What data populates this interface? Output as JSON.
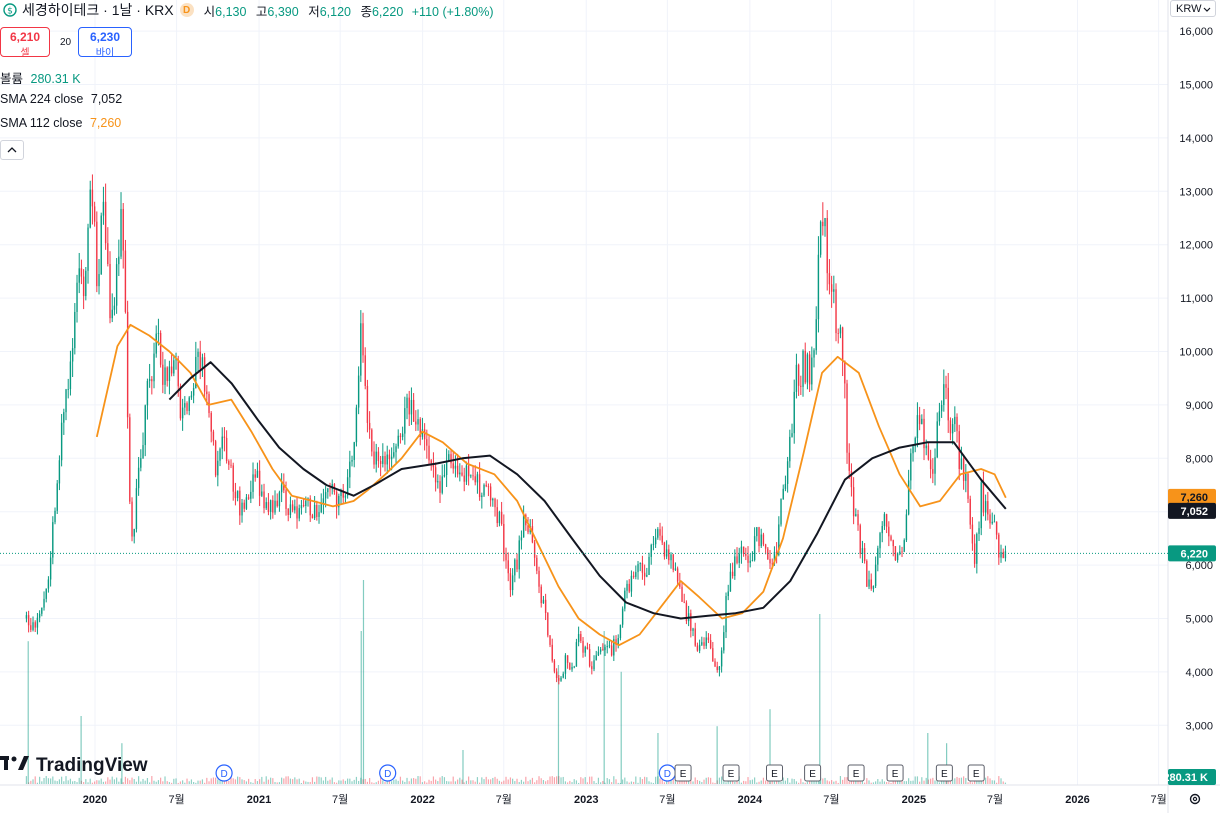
{
  "header": {
    "symbol_icon": "dollar-circle-icon",
    "title": "세경하이테크 · 1날 · KRX",
    "badge": "D",
    "open_label": "시",
    "open": "6,130",
    "high_label": "고",
    "high": "6,390",
    "low_label": "저",
    "low": "6,120",
    "close_label": "종",
    "close": "6,220",
    "change": "+110 (+1.80%)"
  },
  "trade": {
    "sell_price": "6,210",
    "sell_label": "셀",
    "spread": "20",
    "buy_price": "6,230",
    "buy_label": "바이"
  },
  "indicators": {
    "volume_label": "볼륨",
    "volume_value": "280.31 K",
    "sma224_label": "SMA 224 close",
    "sma224_value": "7,052",
    "sma112_label": "SMA 112 close",
    "sma112_value": "7,260",
    "collapse_icon": "chevron-up-icon"
  },
  "currency": "KRW",
  "branding": {
    "logo_icon": "tradingview-logo-icon",
    "name": "TradingView"
  },
  "settings_icon": "gear-icon",
  "colors": {
    "up": "#089981",
    "down": "#f23645",
    "sma112": "#f7931a",
    "sma224": "#131722",
    "last_price": "#089981",
    "grid": "#f0f3fa"
  },
  "chart_data": {
    "type": "candlestick",
    "currency": "KRW",
    "y_axis": {
      "min": 2500,
      "max": 16300,
      "ticks": [
        3000,
        4000,
        5000,
        6000,
        7000,
        8000,
        9000,
        10000,
        11000,
        12000,
        13000,
        14000,
        15000,
        16000
      ],
      "tick_labels": [
        "3,000",
        "4,000",
        "5,000",
        "6,000",
        "7,000",
        "8,000",
        "9,000",
        "10,000",
        "11,000",
        "12,000",
        "13,000",
        "14,000",
        "15,000",
        "16,000"
      ]
    },
    "x_axis": {
      "range": [
        "2019-07-01",
        "2026-09-01"
      ],
      "ticks": [
        "2020-01-01",
        "2020-07-01",
        "2021-01-01",
        "2021-07-01",
        "2022-01-01",
        "2022-07-01",
        "2023-01-01",
        "2023-07-01",
        "2024-01-01",
        "2024-07-01",
        "2025-01-01",
        "2025-07-01",
        "2026-01-01",
        "2026-07-01"
      ],
      "tick_labels": [
        "2020",
        "7월",
        "2021",
        "7월",
        "2022",
        "7월",
        "2023",
        "7월",
        "2024",
        "7월",
        "2025",
        "7월",
        "2026",
        "7월"
      ]
    },
    "price_path": [
      [
        "2019-08-01",
        5000
      ],
      [
        "2019-08-20",
        4850
      ],
      [
        "2019-09-05",
        5300
      ],
      [
        "2019-09-20",
        5900
      ],
      [
        "2019-10-05",
        7300
      ],
      [
        "2019-10-20",
        8600
      ],
      [
        "2019-11-01",
        9300
      ],
      [
        "2019-11-15",
        10500
      ],
      [
        "2019-11-25",
        11800
      ],
      [
        "2019-12-10",
        11000
      ],
      [
        "2019-12-20",
        13500
      ],
      [
        "2020-01-05",
        11500
      ],
      [
        "2020-01-20",
        12500
      ],
      [
        "2020-02-05",
        10600
      ],
      [
        "2020-02-20",
        11500
      ],
      [
        "2020-03-01",
        12800
      ],
      [
        "2020-03-10",
        10500
      ],
      [
        "2020-03-18",
        7000
      ],
      [
        "2020-03-25",
        6500
      ],
      [
        "2020-04-10",
        8000
      ],
      [
        "2020-05-01",
        9400
      ],
      [
        "2020-05-20",
        10300
      ],
      [
        "2020-06-10",
        9200
      ],
      [
        "2020-06-25",
        10200
      ],
      [
        "2020-07-10",
        9000
      ],
      [
        "2020-07-25",
        8900
      ],
      [
        "2020-08-10",
        9600
      ],
      [
        "2020-08-25",
        10000
      ],
      [
        "2020-09-10",
        8800
      ],
      [
        "2020-09-25",
        7800
      ],
      [
        "2020-10-15",
        8300
      ],
      [
        "2020-10-31",
        7600
      ],
      [
        "2020-11-20",
        7000
      ],
      [
        "2020-12-10",
        7500
      ],
      [
        "2020-12-31",
        7600
      ],
      [
        "2021-01-20",
        7100
      ],
      [
        "2021-02-10",
        7200
      ],
      [
        "2021-03-01",
        7300
      ],
      [
        "2021-03-20",
        6900
      ],
      [
        "2021-04-10",
        7000
      ],
      [
        "2021-05-01",
        7100
      ],
      [
        "2021-05-20",
        7000
      ],
      [
        "2021-06-10",
        7300
      ],
      [
        "2021-06-30",
        7200
      ],
      [
        "2021-07-15",
        7600
      ],
      [
        "2021-07-31",
        8200
      ],
      [
        "2021-08-10",
        9600
      ],
      [
        "2021-08-17",
        10900
      ],
      [
        "2021-08-24",
        9300
      ],
      [
        "2021-09-10",
        8200
      ],
      [
        "2021-09-30",
        7700
      ],
      [
        "2021-10-15",
        8300
      ],
      [
        "2021-10-31",
        8100
      ],
      [
        "2021-11-15",
        8700
      ],
      [
        "2021-11-30",
        9100
      ],
      [
        "2021-12-15",
        8900
      ],
      [
        "2021-12-31",
        8400
      ],
      [
        "2022-01-20",
        7900
      ],
      [
        "2022-02-10",
        7600
      ],
      [
        "2022-03-01",
        7900
      ],
      [
        "2022-03-20",
        7500
      ],
      [
        "2022-04-10",
        7700
      ],
      [
        "2022-04-30",
        7500
      ],
      [
        "2022-05-20",
        7400
      ],
      [
        "2022-06-10",
        7300
      ],
      [
        "2022-06-30",
        6400
      ],
      [
        "2022-07-15",
        5500
      ],
      [
        "2022-07-31",
        6100
      ],
      [
        "2022-08-15",
        7000
      ],
      [
        "2022-08-31",
        6600
      ],
      [
        "2022-09-15",
        5600
      ],
      [
        "2022-09-30",
        5100
      ],
      [
        "2022-10-15",
        4200
      ],
      [
        "2022-10-31",
        3800
      ],
      [
        "2022-11-15",
        4200
      ],
      [
        "2022-11-30",
        4000
      ],
      [
        "2022-12-15",
        4700
      ],
      [
        "2022-12-31",
        4400
      ],
      [
        "2023-01-15",
        4100
      ],
      [
        "2023-01-31",
        4300
      ],
      [
        "2023-02-15",
        4500
      ],
      [
        "2023-02-28",
        4400
      ],
      [
        "2023-03-15",
        4800
      ],
      [
        "2023-03-31",
        5600
      ],
      [
        "2023-04-15",
        5800
      ],
      [
        "2023-04-30",
        6000
      ],
      [
        "2023-05-15",
        5800
      ],
      [
        "2023-05-31",
        6400
      ],
      [
        "2023-06-10",
        6700
      ],
      [
        "2023-06-25",
        6300
      ],
      [
        "2023-07-10",
        6100
      ],
      [
        "2023-07-25",
        5600
      ],
      [
        "2023-08-10",
        5200
      ],
      [
        "2023-08-25",
        4700
      ],
      [
        "2023-09-10",
        4400
      ],
      [
        "2023-09-25",
        4600
      ],
      [
        "2023-10-10",
        4200
      ],
      [
        "2023-10-20",
        3900
      ],
      [
        "2023-10-31",
        4600
      ],
      [
        "2023-11-15",
        5800
      ],
      [
        "2023-11-30",
        6100
      ],
      [
        "2023-12-15",
        6300
      ],
      [
        "2023-12-31",
        5900
      ],
      [
        "2024-01-15",
        6600
      ],
      [
        "2024-01-31",
        6400
      ],
      [
        "2024-02-15",
        6000
      ],
      [
        "2024-02-28",
        6300
      ],
      [
        "2024-03-15",
        7300
      ],
      [
        "2024-03-31",
        8500
      ],
      [
        "2024-04-15",
        9500
      ],
      [
        "2024-04-30",
        9800
      ],
      [
        "2024-05-15",
        9600
      ],
      [
        "2024-05-25",
        10200
      ],
      [
        "2024-06-05",
        12700
      ],
      [
        "2024-06-15",
        12200
      ],
      [
        "2024-06-25",
        11500
      ],
      [
        "2024-07-10",
        10600
      ],
      [
        "2024-07-25",
        10300
      ],
      [
        "2024-08-05",
        8300
      ],
      [
        "2024-08-15",
        7200
      ],
      [
        "2024-08-31",
        6500
      ],
      [
        "2024-09-15",
        5800
      ],
      [
        "2024-09-30",
        5700
      ],
      [
        "2024-10-15",
        6300
      ],
      [
        "2024-10-31",
        6900
      ],
      [
        "2024-11-15",
        6200
      ],
      [
        "2024-11-30",
        6100
      ],
      [
        "2024-12-15",
        6900
      ],
      [
        "2024-12-31",
        8600
      ],
      [
        "2025-01-15",
        8700
      ],
      [
        "2025-01-31",
        8100
      ],
      [
        "2025-02-10",
        7400
      ],
      [
        "2025-02-25",
        8700
      ],
      [
        "2025-03-10",
        9300
      ],
      [
        "2025-03-20",
        8500
      ],
      [
        "2025-03-31",
        8900
      ],
      [
        "2025-04-15",
        7800
      ],
      [
        "2025-04-30",
        7500
      ],
      [
        "2025-05-15",
        6000
      ],
      [
        "2025-05-31",
        7300
      ],
      [
        "2025-06-15",
        7000
      ],
      [
        "2025-06-30",
        6600
      ],
      [
        "2025-07-10",
        6200
      ],
      [
        "2025-07-20",
        6100
      ],
      [
        "2025-07-25",
        6220
      ]
    ],
    "sma112_path": [
      [
        "2020-01-05",
        8400
      ],
      [
        "2020-02-20",
        10100
      ],
      [
        "2020-03-20",
        10500
      ],
      [
        "2020-05-01",
        10300
      ],
      [
        "2020-06-15",
        10000
      ],
      [
        "2020-08-01",
        9600
      ],
      [
        "2020-09-10",
        9000
      ],
      [
        "2020-10-31",
        9100
      ],
      [
        "2020-12-15",
        8500
      ],
      [
        "2021-01-31",
        7800
      ],
      [
        "2021-03-15",
        7300
      ],
      [
        "2021-05-01",
        7200
      ],
      [
        "2021-06-15",
        7100
      ],
      [
        "2021-07-31",
        7200
      ],
      [
        "2021-08-31",
        7400
      ],
      [
        "2021-10-10",
        7700
      ],
      [
        "2021-11-15",
        8000
      ],
      [
        "2021-12-31",
        8500
      ],
      [
        "2022-02-15",
        8300
      ],
      [
        "2022-04-10",
        7900
      ],
      [
        "2022-06-10",
        7700
      ],
      [
        "2022-07-31",
        7200
      ],
      [
        "2022-09-15",
        6400
      ],
      [
        "2022-10-31",
        5600
      ],
      [
        "2022-12-15",
        5000
      ],
      [
        "2023-01-31",
        4700
      ],
      [
        "2023-03-15",
        4500
      ],
      [
        "2023-04-30",
        4700
      ],
      [
        "2023-06-15",
        5200
      ],
      [
        "2023-07-31",
        5700
      ],
      [
        "2023-09-10",
        5400
      ],
      [
        "2023-10-31",
        5000
      ],
      [
        "2023-12-15",
        5100
      ],
      [
        "2024-01-31",
        5500
      ],
      [
        "2024-03-15",
        6500
      ],
      [
        "2024-04-30",
        8100
      ],
      [
        "2024-06-10",
        9600
      ],
      [
        "2024-07-15",
        9900
      ],
      [
        "2024-08-31",
        9600
      ],
      [
        "2024-10-15",
        8600
      ],
      [
        "2024-11-30",
        7700
      ],
      [
        "2025-01-15",
        7100
      ],
      [
        "2025-02-28",
        7200
      ],
      [
        "2025-04-15",
        7700
      ],
      [
        "2025-05-31",
        7800
      ],
      [
        "2025-06-30",
        7700
      ],
      [
        "2025-07-25",
        7260
      ]
    ],
    "sma224_path": [
      [
        "2020-06-15",
        9100
      ],
      [
        "2020-08-01",
        9500
      ],
      [
        "2020-09-15",
        9800
      ],
      [
        "2020-11-01",
        9400
      ],
      [
        "2020-12-31",
        8700
      ],
      [
        "2021-02-15",
        8200
      ],
      [
        "2021-04-10",
        7800
      ],
      [
        "2021-05-31",
        7500
      ],
      [
        "2021-07-31",
        7300
      ],
      [
        "2021-09-15",
        7500
      ],
      [
        "2021-11-15",
        7800
      ],
      [
        "2022-01-31",
        7900
      ],
      [
        "2022-03-31",
        8000
      ],
      [
        "2022-05-31",
        8050
      ],
      [
        "2022-07-31",
        7700
      ],
      [
        "2022-09-30",
        7200
      ],
      [
        "2022-11-30",
        6500
      ],
      [
        "2023-01-31",
        5800
      ],
      [
        "2023-03-31",
        5300
      ],
      [
        "2023-05-31",
        5100
      ],
      [
        "2023-07-31",
        5000
      ],
      [
        "2023-09-30",
        5050
      ],
      [
        "2023-11-30",
        5100
      ],
      [
        "2024-01-31",
        5200
      ],
      [
        "2024-03-31",
        5700
      ],
      [
        "2024-05-31",
        6600
      ],
      [
        "2024-07-31",
        7600
      ],
      [
        "2024-09-30",
        8000
      ],
      [
        "2024-11-30",
        8200
      ],
      [
        "2025-01-31",
        8300
      ],
      [
        "2025-03-31",
        8300
      ],
      [
        "2025-05-31",
        7600
      ],
      [
        "2025-07-25",
        7052
      ]
    ],
    "last_close": 6220,
    "last_labels": {
      "sma112": "7,260",
      "sma224": "7,052",
      "close": "6,220",
      "volume": "280.31 K"
    },
    "volume_spikes": [
      [
        "2019-08-05",
        0.42
      ],
      [
        "2019-12-01",
        0.2
      ],
      [
        "2020-03-01",
        0.12
      ],
      [
        "2021-08-17",
        0.45
      ],
      [
        "2021-08-22",
        0.6
      ],
      [
        "2022-04-01",
        0.1
      ],
      [
        "2022-10-31",
        0.35
      ],
      [
        "2023-02-10",
        0.45
      ],
      [
        "2023-03-20",
        0.33
      ],
      [
        "2023-06-10",
        0.15
      ],
      [
        "2023-10-20",
        0.17
      ],
      [
        "2024-02-15",
        0.22
      ],
      [
        "2024-06-05",
        0.5
      ],
      [
        "2025-02-01",
        0.15
      ],
      [
        "2025-03-15",
        0.12
      ]
    ],
    "events": [
      {
        "date": "2020-10-15",
        "label": "D"
      },
      {
        "date": "2021-10-15",
        "label": "D"
      },
      {
        "date": "2023-07-01",
        "label": "D"
      },
      {
        "date": "2023-08-05",
        "label": "E"
      },
      {
        "date": "2023-11-20",
        "label": "E"
      },
      {
        "date": "2024-02-25",
        "label": "E"
      },
      {
        "date": "2024-05-20",
        "label": "E"
      },
      {
        "date": "2024-08-25",
        "label": "E"
      },
      {
        "date": "2024-11-20",
        "label": "E"
      },
      {
        "date": "2025-03-10",
        "label": "E"
      },
      {
        "date": "2025-05-20",
        "label": "E"
      }
    ]
  }
}
